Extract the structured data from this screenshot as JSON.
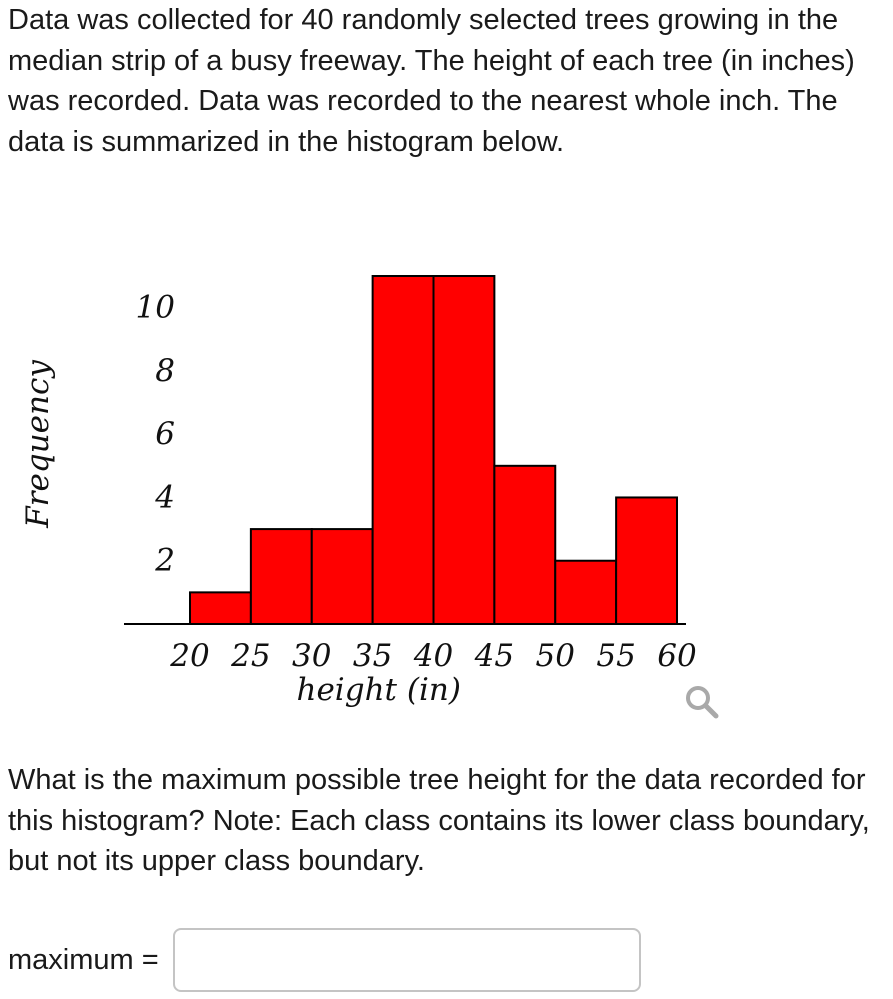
{
  "question": {
    "intro": "Data was collected for 40 randomly selected trees growing in the median strip of a busy freeway. The height of each tree (in inches) was recorded. Data was recorded to the nearest whole inch. The data is summarized in the histogram below.",
    "prompt": "What is the maximum possible tree height for the data recorded for this histogram? Note: Each class contains its lower class boundary, but not its upper class boundary."
  },
  "answer": {
    "label": "maximum =",
    "value": ""
  },
  "icons": {
    "zoom": "magnifier-icon"
  },
  "colors": {
    "bar_fill": "#ff0000",
    "bar_stroke": "#000000",
    "axis": "#000000",
    "icon": "#a9a9a9"
  },
  "chart_data": {
    "type": "bar",
    "histogram": true,
    "bin_edges": [
      20,
      25,
      30,
      35,
      40,
      45,
      50,
      55,
      60
    ],
    "values": [
      1,
      3,
      3,
      11,
      11,
      5,
      2,
      4
    ],
    "x_ticks": [
      20,
      25,
      30,
      35,
      40,
      45,
      50,
      55,
      60
    ],
    "y_ticks": [
      2,
      4,
      6,
      8,
      10
    ],
    "xlabel": "height (in)",
    "ylabel": "Frequency",
    "xlim": [
      20,
      60
    ],
    "ylim": [
      0,
      11
    ],
    "grid": false
  }
}
